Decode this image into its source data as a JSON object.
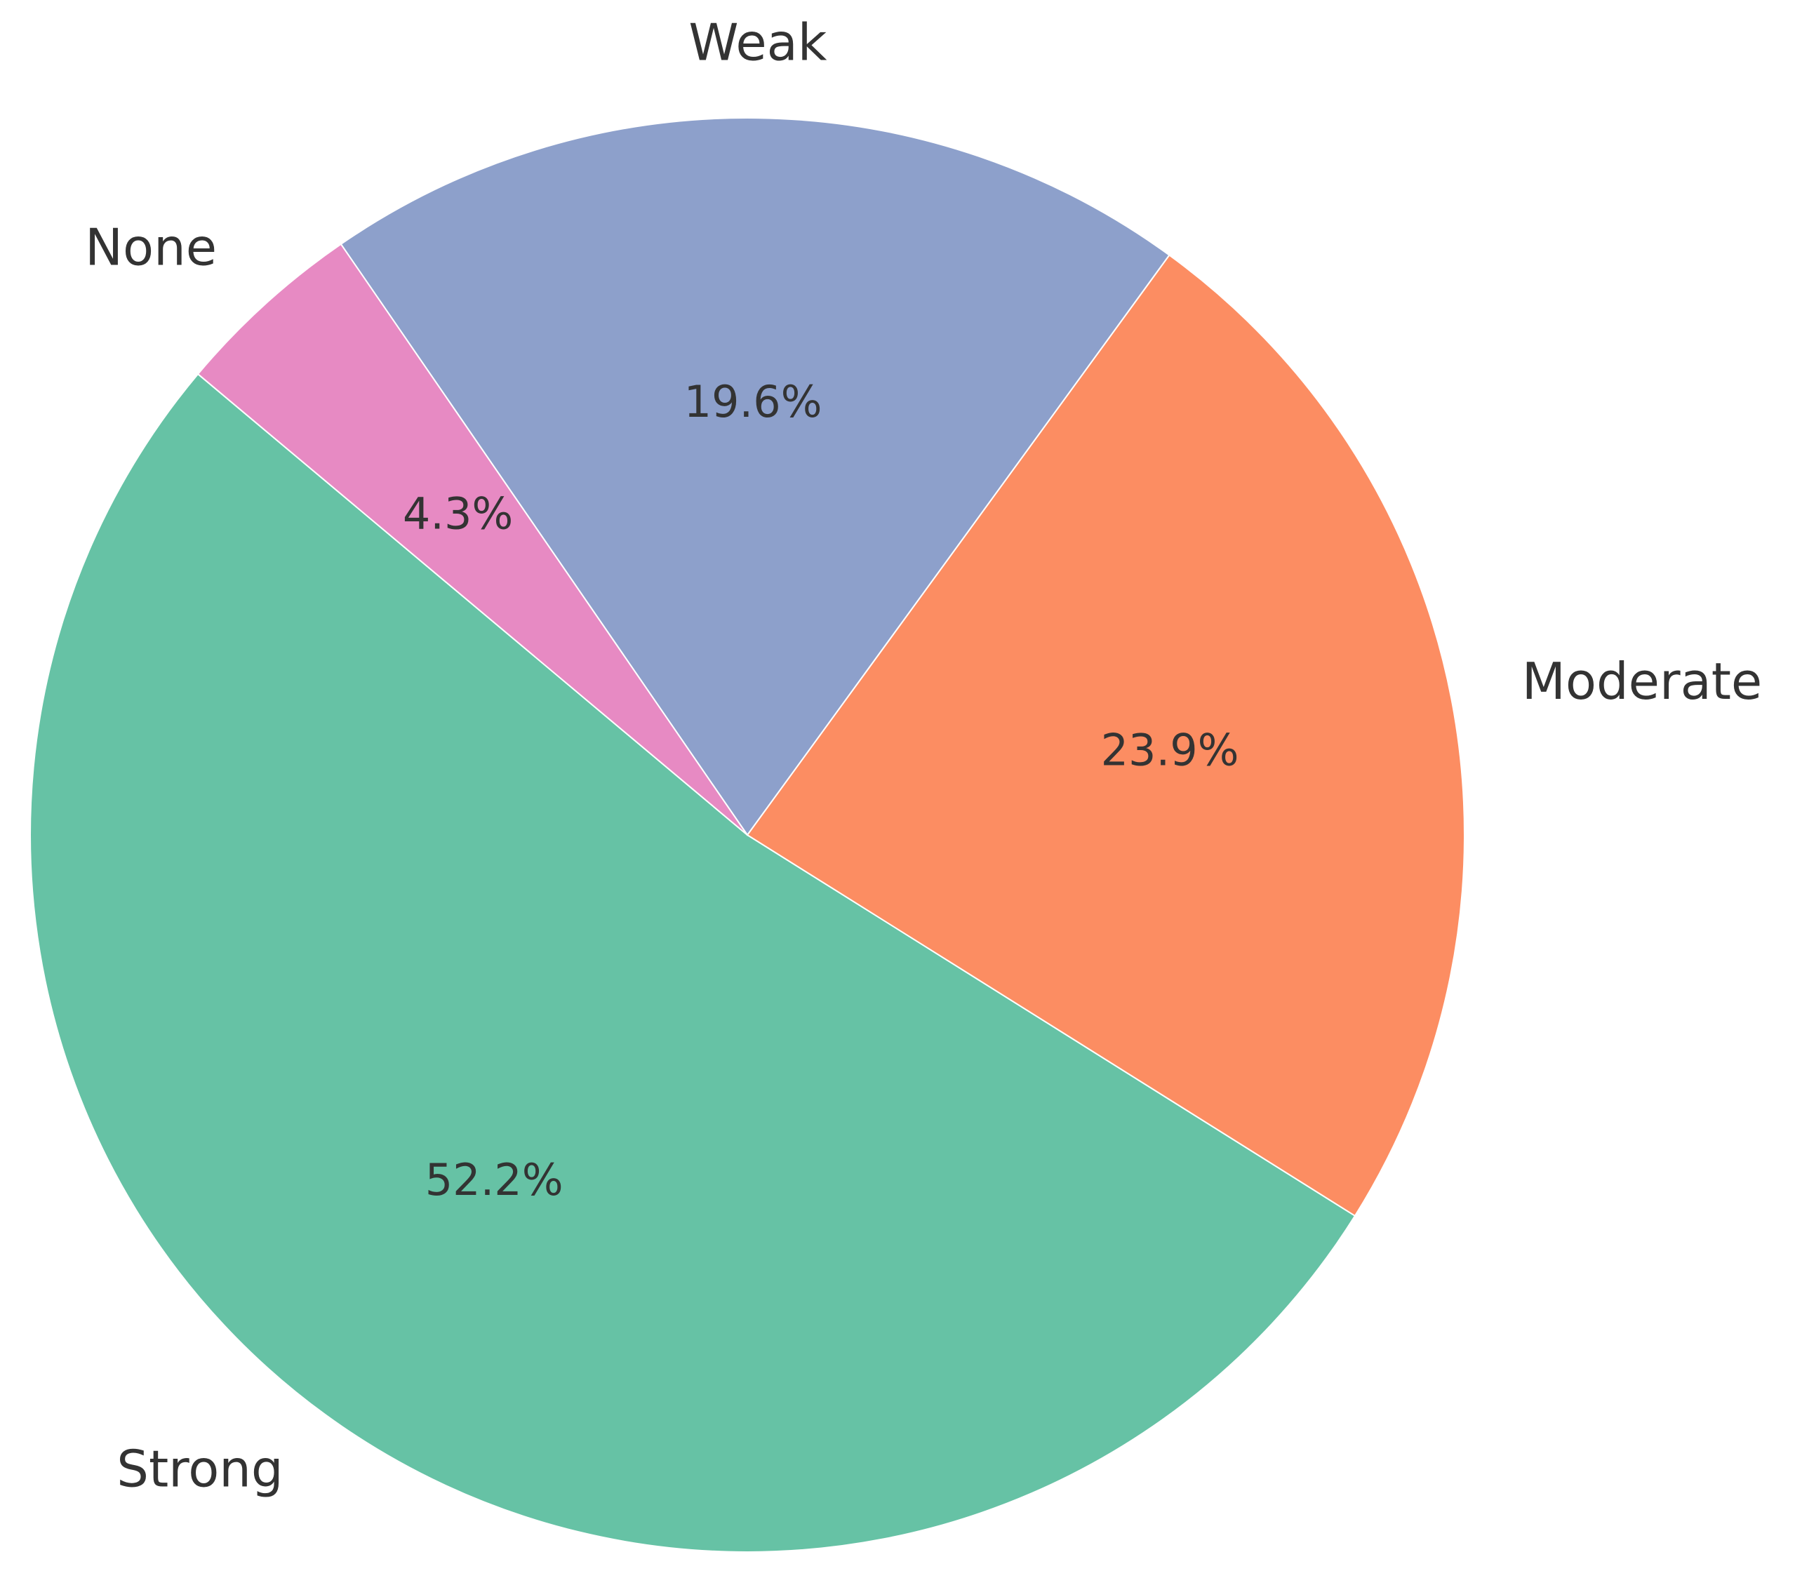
{
  "chart_data": {
    "type": "pie",
    "title": "",
    "categories": [
      "Strong",
      "Moderate",
      "Weak",
      "None"
    ],
    "values": [
      52.2,
      23.9,
      19.6,
      4.3
    ],
    "value_labels": [
      "52.2%",
      "23.9%",
      "19.6%",
      "4.3%"
    ],
    "colors": [
      "#66c2a5",
      "#fc8d62",
      "#8da0cb",
      "#e78ac3"
    ],
    "start_angle_deg": 140,
    "direction": "counterclockwise",
    "slice_edge_color": "#ffffff"
  }
}
